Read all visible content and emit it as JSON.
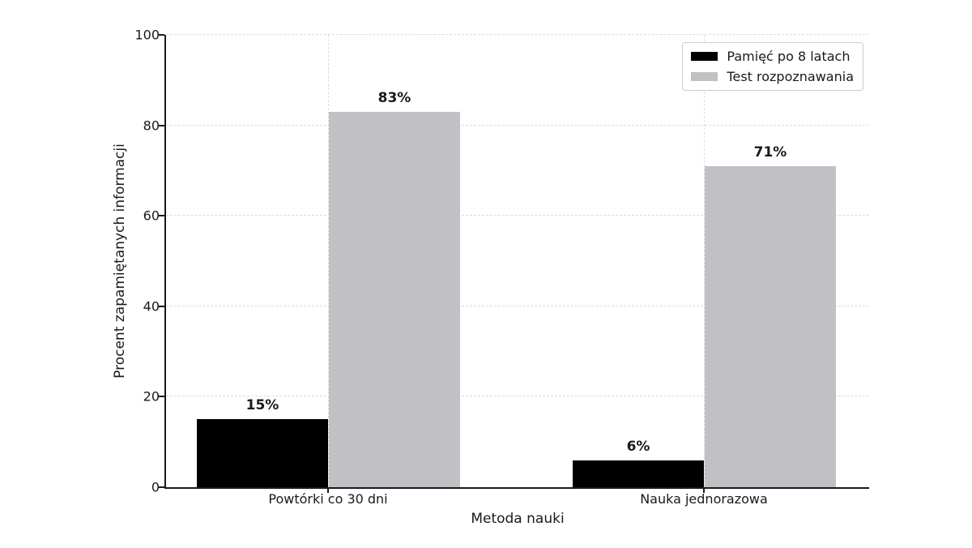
{
  "chart_data": {
    "type": "bar",
    "title": "",
    "xlabel": "Metoda nauki",
    "ylabel": "Procent zapamiętanych informacji",
    "categories": [
      "Powtórki co 30 dni",
      "Nauka jednorazowa"
    ],
    "series": [
      {
        "name": "Pamięć po 8 latach",
        "color": "#000000",
        "values": [
          15,
          6
        ]
      },
      {
        "name": "Test rozpoznawania",
        "color": "#c1c0c4",
        "values": [
          83,
          71
        ]
      }
    ],
    "value_labels": [
      [
        "15%",
        "6%"
      ],
      [
        "83%",
        "71%"
      ]
    ],
    "value_label_suffix": "%",
    "ylim": [
      0,
      100
    ],
    "yticks": [
      "0",
      "20",
      "40",
      "60",
      "80",
      "100"
    ],
    "grid": {
      "horizontal": true,
      "vertical": true,
      "line_style": "dashed"
    },
    "legend": {
      "position": "upper-right",
      "entries": [
        "Pamięć po 8 latach",
        "Test rozpoznawania"
      ]
    }
  },
  "colors": {
    "background": "#ffffff",
    "bar_series_1": "#000000",
    "bar_series_2": "#c1c0c4",
    "gridline": "#dcdcdc",
    "axis": "#1a1a1a",
    "text": "#1a1a1a",
    "legend_border": "#cccccc"
  }
}
